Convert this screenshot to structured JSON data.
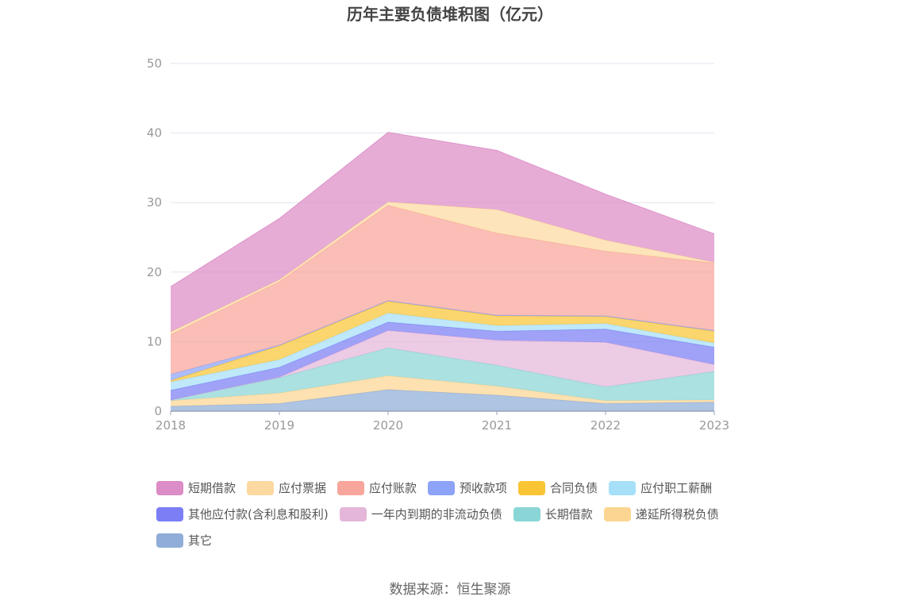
{
  "chart_data": {
    "type": "area",
    "title": "历年主要负债堆积图（亿元）",
    "x": [
      "2018",
      "2019",
      "2020",
      "2021",
      "2022",
      "2023"
    ],
    "ylim": [
      0,
      50
    ],
    "yticks": [
      "0",
      "10",
      "20",
      "30",
      "40",
      "50"
    ],
    "stacked": true,
    "grid": true,
    "legend_position": "bottom",
    "series": [
      {
        "name": "其它",
        "color": "#8fadd8",
        "values": [
          0.7,
          1.1,
          3.1,
          2.3,
          1.1,
          1.3
        ]
      },
      {
        "name": "递延所得税负债",
        "color": "#fcd593",
        "values": [
          0.8,
          1.5,
          2.0,
          1.3,
          0.4,
          0.3
        ]
      },
      {
        "name": "长期借款",
        "color": "#8ad6d6",
        "values": [
          0.1,
          2.2,
          4.0,
          3.0,
          2.0,
          4.1
        ]
      },
      {
        "name": "一年内到期的非流动负债",
        "color": "#e4b7da",
        "values": [
          0.0,
          0.1,
          2.5,
          3.6,
          6.4,
          1.0
        ]
      },
      {
        "name": "其他应付款(含利息和股利)",
        "color": "#7b7ef4",
        "values": [
          1.4,
          1.4,
          1.2,
          1.3,
          1.9,
          2.5
        ]
      },
      {
        "name": "应付职工薪酬",
        "color": "#a6dff8",
        "values": [
          1.2,
          1.1,
          1.3,
          0.8,
          0.8,
          0.6
        ]
      },
      {
        "name": "合同负债",
        "color": "#fac534",
        "values": [
          0.2,
          2.0,
          1.7,
          1.4,
          1.0,
          1.7
        ]
      },
      {
        "name": "预收款项",
        "color": "#8ca3f8",
        "values": [
          0.9,
          0.1,
          0.1,
          0.1,
          0.1,
          0.1
        ]
      },
      {
        "name": "应付账款",
        "color": "#f8a59b",
        "values": [
          5.7,
          9.1,
          13.7,
          11.8,
          9.3,
          9.7
        ]
      },
      {
        "name": "应付票据",
        "color": "#fcd9a0",
        "values": [
          0.4,
          0.3,
          0.5,
          3.4,
          1.6,
          0.1
        ]
      },
      {
        "name": "短期借款",
        "color": "#dc8cc6",
        "values": [
          6.5,
          8.8,
          10.0,
          8.5,
          6.6,
          4.1
        ]
      }
    ],
    "legend_order": [
      "短期借款",
      "应付票据",
      "应付账款",
      "预收款项",
      "合同负债",
      "应付职工薪酬",
      "其他应付款(含利息和股利)",
      "一年内到期的非流动负债",
      "长期借款",
      "递延所得税负债",
      "其它"
    ]
  },
  "source": "数据来源：恒生聚源"
}
